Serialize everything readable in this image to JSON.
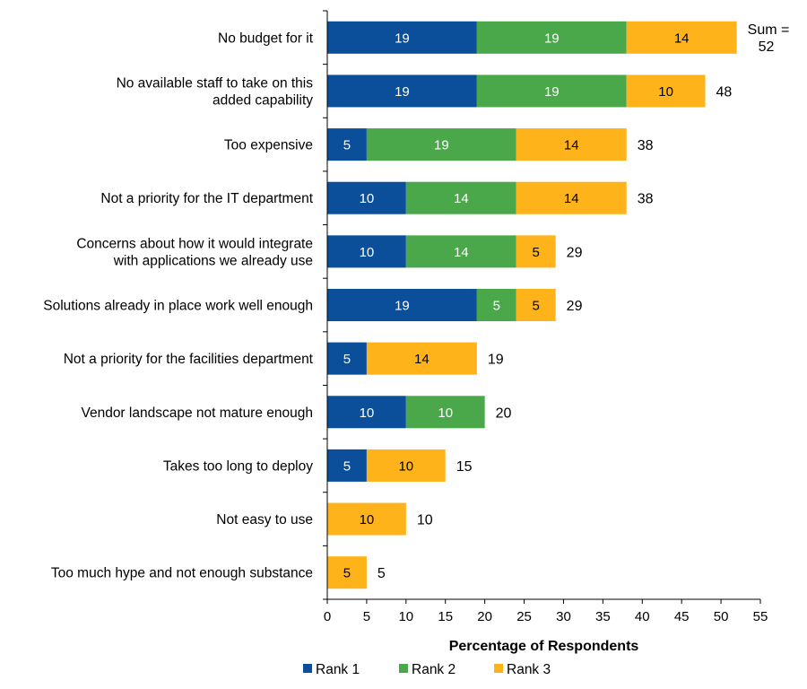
{
  "chart_data": {
    "type": "bar",
    "orientation": "horizontal",
    "stacked": true,
    "categories": [
      [
        "No budget for it"
      ],
      [
        "No available staff to take on this",
        "added capability"
      ],
      [
        "Too expensive"
      ],
      [
        "Not a priority for the IT department"
      ],
      [
        "Concerns about how it would integrate",
        "with applications we already use"
      ],
      [
        "Solutions already in place work well enough"
      ],
      [
        "Not a priority for the facilities department"
      ],
      [
        "Vendor landscape not mature enough"
      ],
      [
        "Takes too long to deploy"
      ],
      [
        "Not easy to use"
      ],
      [
        "Too much hype and not enough substance"
      ]
    ],
    "series": [
      {
        "name": "Rank 1",
        "color": "#0B4F9A",
        "label_color": "#ffffff",
        "values": [
          19,
          19,
          5,
          10,
          10,
          19,
          5,
          10,
          5,
          0,
          0
        ]
      },
      {
        "name": "Rank 2",
        "color": "#4AA84A",
        "label_color": "#ffffff",
        "values": [
          19,
          19,
          19,
          14,
          14,
          5,
          0,
          10,
          0,
          0,
          0
        ]
      },
      {
        "name": "Rank 3",
        "color": "#FFB31A",
        "label_color": "#000000",
        "values": [
          14,
          10,
          14,
          14,
          5,
          5,
          14,
          0,
          10,
          10,
          5
        ]
      }
    ],
    "totals": [
      52,
      48,
      38,
      38,
      29,
      29,
      19,
      20,
      15,
      10,
      5
    ],
    "first_total_prefix": "Sum =",
    "xlabel": "Percentage of Respondents",
    "xlim": [
      0,
      55
    ],
    "xticks": [
      0,
      5,
      10,
      15,
      20,
      25,
      30,
      35,
      40,
      45,
      50,
      55
    ],
    "grid": false,
    "legend_position": "bottom"
  }
}
